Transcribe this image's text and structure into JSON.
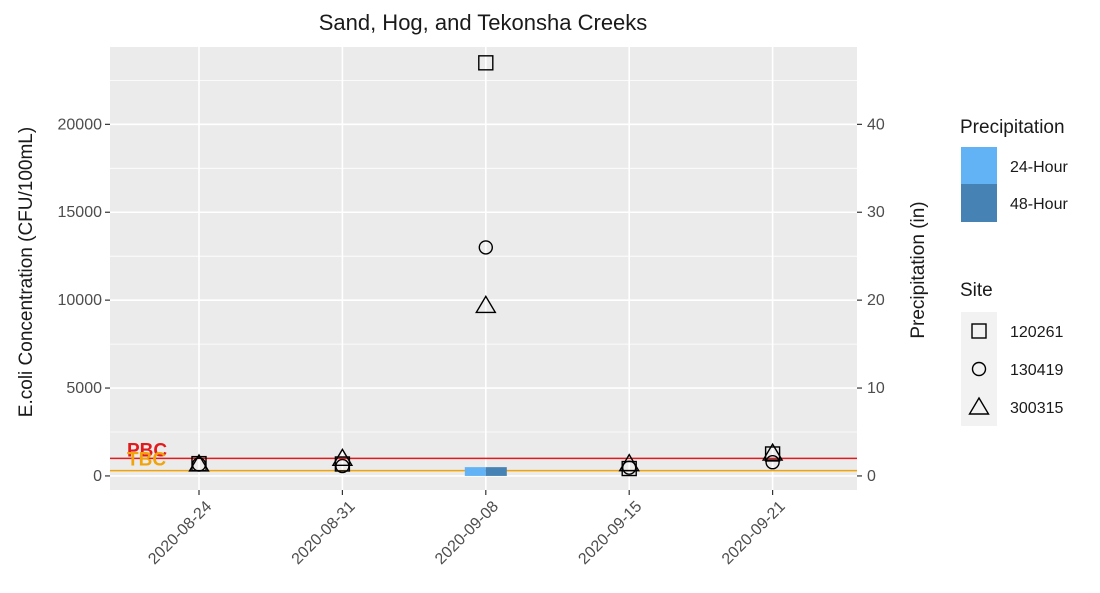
{
  "chart_data": {
    "type": "scatter",
    "title": "Sand, Hog, and Tekonsha Creeks",
    "ylabel": "E.coli Concentration (CFU/100mL)",
    "y2label": "Precipitation (in)",
    "categories": [
      "2020-08-24",
      "2020-08-31",
      "2020-09-08",
      "2020-09-15",
      "2020-09-21"
    ],
    "ylim": [
      -800,
      24400
    ],
    "y_ticks": [
      0,
      5000,
      10000,
      15000,
      20000
    ],
    "y2lim": [
      -1.6,
      48.8
    ],
    "y2_ticks": [
      0,
      10,
      20,
      30,
      40
    ],
    "grid": true,
    "series": [
      {
        "name": "120261",
        "shape": "square",
        "values": [
          700,
          680,
          23500,
          420,
          1250
        ]
      },
      {
        "name": "130419",
        "shape": "circle",
        "values": [
          650,
          560,
          13000,
          470,
          780
        ]
      },
      {
        "name": "300315",
        "shape": "triangle",
        "values": [
          680,
          1000,
          9700,
          700,
          1300
        ]
      }
    ],
    "precipitation": [
      {
        "name": "24-Hour",
        "color": "#62b2f6",
        "values": [
          0,
          0,
          1.0,
          0,
          0
        ]
      },
      {
        "name": "48-Hour",
        "color": "#4682b4",
        "values": [
          0,
          0,
          1.0,
          0,
          0
        ]
      }
    ],
    "reference_lines": [
      {
        "label": "PBC",
        "value": 1000,
        "color": "#e31a1c"
      },
      {
        "label": "TBC",
        "value": 300,
        "color": "#f0a30a"
      }
    ],
    "legends": {
      "placement": "right",
      "precipitation_title": "Precipitation",
      "site_title": "Site"
    },
    "panel_color": "#ebebeb",
    "grid_color": "#ffffff"
  }
}
